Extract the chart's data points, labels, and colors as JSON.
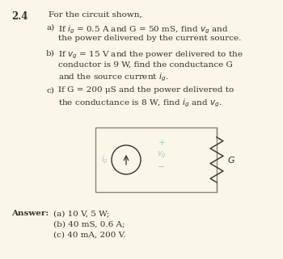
{
  "background_color": "#faf6e8",
  "problem_number": "2.4",
  "title_text": "For the circuit shown,",
  "part_a_label": "a)",
  "part_a_line1": "If $i_g$ = 0.5 A and G = 50 mS, find $v_g$ and",
  "part_a_line2": "the power delivered by the current source.",
  "part_b_label": "b)",
  "part_b_line1": "If $v_g$ = 15 V and the power delivered to the",
  "part_b_line2": "conductor is 9 W, find the conductance G",
  "part_b_line3": "and the source current $i_g$.",
  "part_c_label": "c)",
  "part_c_line1": "If G = 200 μS and the power delivered to",
  "part_c_line2": "the conductance is 8 W, find $i_g$ and $v_g$.",
  "answer_label": "Answer:",
  "answer_a": "(a) 10 V, 5 W;",
  "answer_b": "(b) 40 mS, 0.6 A;",
  "answer_c": "(c) 40 mA, 200 V.",
  "label_color": "#a0c8d8",
  "text_color": "#3a3028",
  "font_size_main": 7.5,
  "font_size_number": 8.5,
  "font_size_answer": 7.5,
  "font_size_circuit": 7.0
}
